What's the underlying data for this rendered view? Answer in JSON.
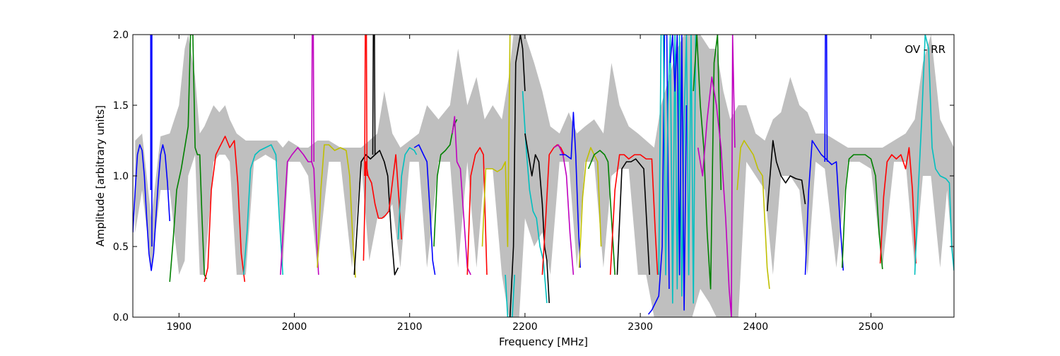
{
  "chart_data": {
    "type": "line",
    "title": "",
    "xlabel": "Frequency [MHz]",
    "ylabel": "Amplitude [arbitrary units]",
    "annotation": "OV - RR",
    "xlim": [
      1860,
      2572
    ],
    "ylim": [
      0.0,
      2.0
    ],
    "grid": false,
    "legend": "none",
    "x_ticks": [
      1900,
      2000,
      2100,
      2200,
      2300,
      2400,
      2500
    ],
    "y_ticks": [
      0.0,
      0.5,
      1.0,
      1.5,
      2.0
    ],
    "x_tick_labels": [
      "1900",
      "2000",
      "2100",
      "2200",
      "2300",
      "2400",
      "2500"
    ],
    "y_tick_labels": [
      "0.0",
      "0.5",
      "1.0",
      "1.5",
      "2.0"
    ],
    "envelope": {
      "color": "#bfbfbf",
      "x": [
        1862,
        1868,
        1876,
        1884,
        1892,
        1900,
        1905,
        1908,
        1914,
        1918,
        1922,
        1930,
        1935,
        1940,
        1944,
        1950,
        1958,
        1965,
        1975,
        1985,
        1990,
        1995,
        2005,
        2012,
        2020,
        2030,
        2040,
        2050,
        2058,
        2065,
        2072,
        2078,
        2085,
        2092,
        2100,
        2108,
        2115,
        2125,
        2135,
        2142,
        2150,
        2158,
        2165,
        2172,
        2180,
        2186,
        2190,
        2195,
        2200,
        2208,
        2215,
        2222,
        2230,
        2238,
        2245,
        2252,
        2260,
        2268,
        2275,
        2282,
        2290,
        2298,
        2305,
        2312,
        2318,
        2325,
        2332,
        2338,
        2345,
        2352,
        2360,
        2366,
        2372,
        2378,
        2385,
        2392,
        2400,
        2408,
        2415,
        2422,
        2430,
        2438,
        2445,
        2452,
        2460,
        2470,
        2480,
        2490,
        2500,
        2510,
        2520,
        2530,
        2538,
        2545,
        2552,
        2560,
        2566,
        2572
      ],
      "upper": [
        1.25,
        1.3,
        0.7,
        1.28,
        1.3,
        1.5,
        1.9,
        2.0,
        1.7,
        1.3,
        1.35,
        1.5,
        1.45,
        1.5,
        1.4,
        1.3,
        1.25,
        1.25,
        1.25,
        1.25,
        1.2,
        1.25,
        1.2,
        1.2,
        1.25,
        1.25,
        1.2,
        1.2,
        1.2,
        1.25,
        1.3,
        1.6,
        1.3,
        1.2,
        1.25,
        1.3,
        1.5,
        1.4,
        1.5,
        1.9,
        1.5,
        1.7,
        1.4,
        1.5,
        1.4,
        1.7,
        2.0,
        2.0,
        2.0,
        1.8,
        1.6,
        1.35,
        1.3,
        1.45,
        1.3,
        1.35,
        1.4,
        1.3,
        1.8,
        1.5,
        1.35,
        1.3,
        1.25,
        1.2,
        1.5,
        1.7,
        1.9,
        2.0,
        2.0,
        2.0,
        1.9,
        1.9,
        1.6,
        1.4,
        1.5,
        1.5,
        1.3,
        1.25,
        1.4,
        1.45,
        1.7,
        1.5,
        1.45,
        1.3,
        1.3,
        1.25,
        1.2,
        1.2,
        1.2,
        1.2,
        1.25,
        1.3,
        1.4,
        1.8,
        2.0,
        1.4,
        1.3,
        1.2
      ],
      "lower": [
        0.6,
        0.9,
        0.35,
        0.9,
        0.9,
        0.3,
        0.4,
        1.0,
        1.15,
        0.3,
        0.3,
        1.1,
        1.15,
        1.15,
        1.1,
        0.3,
        0.3,
        1.1,
        1.15,
        1.1,
        0.35,
        1.1,
        1.1,
        1.0,
        0.35,
        1.1,
        1.1,
        0.35,
        1.1,
        0.4,
        0.7,
        0.7,
        0.8,
        0.35,
        1.1,
        1.1,
        0.35,
        1.1,
        1.1,
        0.35,
        1.1,
        0.35,
        1.05,
        1.05,
        0.3,
        0.0,
        0.0,
        0.0,
        0.7,
        0.5,
        0.6,
        0.3,
        1.1,
        1.1,
        0.35,
        1.1,
        1.1,
        0.35,
        1.0,
        1.05,
        1.05,
        0.3,
        0.3,
        0.0,
        0.0,
        0.0,
        0.0,
        0.0,
        0.0,
        0.2,
        0.1,
        0.0,
        0.0,
        0.0,
        0.0,
        1.1,
        1.0,
        0.9,
        0.3,
        1.0,
        1.0,
        0.9,
        0.3,
        1.1,
        1.05,
        0.35,
        1.1,
        1.1,
        1.05,
        0.35,
        1.1,
        1.1,
        0.35,
        1.0,
        1.0,
        0.35,
        0.9,
        0.35
      ]
    },
    "series": [
      {
        "color": "#0000ff",
        "x": [
          1860,
          1862,
          1864,
          1866,
          1868,
          1870,
          1872,
          1874,
          1876,
          1878,
          1880,
          1882,
          1884,
          1886,
          1888,
          1890,
          1892
        ],
        "y": [
          0.6,
          0.9,
          1.15,
          1.22,
          1.18,
          1.0,
          0.7,
          0.45,
          0.33,
          0.45,
          0.7,
          0.95,
          1.15,
          1.22,
          1.15,
          0.95,
          0.68
        ]
      },
      {
        "color": "#0000ff",
        "x": [
          1875.5,
          1875.5,
          1876.5,
          1876.5
        ],
        "y": [
          0.9,
          2.0,
          2.0,
          0.5
        ]
      },
      {
        "color": "#008000",
        "x": [
          1892,
          1895,
          1898,
          1902,
          1906,
          1908,
          1910,
          1912,
          1914,
          1916,
          1918,
          1920,
          1922,
          1924
        ],
        "y": [
          0.25,
          0.55,
          0.9,
          1.05,
          1.25,
          1.35,
          2.0,
          2.0,
          1.2,
          1.15,
          1.15,
          0.7,
          0.3,
          0.27
        ]
      },
      {
        "color": "#ff0000",
        "x": [
          1922,
          1925,
          1928,
          1932,
          1935,
          1940,
          1944,
          1948,
          1951,
          1954,
          1957
        ],
        "y": [
          0.25,
          0.35,
          0.9,
          1.15,
          1.2,
          1.28,
          1.2,
          1.25,
          0.95,
          0.45,
          0.25
        ]
      },
      {
        "color": "#00bfbf",
        "x": [
          1956,
          1959,
          1962,
          1966,
          1970,
          1975,
          1980,
          1984,
          1987,
          1990
        ],
        "y": [
          0.3,
          0.6,
          1.05,
          1.15,
          1.18,
          1.2,
          1.22,
          1.15,
          0.7,
          0.3
        ]
      },
      {
        "color": "#bf00bf",
        "x": [
          1988,
          1991,
          1994,
          1998,
          2003,
          2008,
          2012,
          2015,
          2017,
          2019,
          2021
        ],
        "y": [
          0.3,
          0.7,
          1.1,
          1.15,
          1.2,
          1.15,
          1.1,
          1.1,
          1.05,
          0.6,
          0.3
        ]
      },
      {
        "color": "#bf00bf",
        "x": [
          2015,
          2015.5,
          2016.5,
          2017
        ],
        "y": [
          1.1,
          2.0,
          2.0,
          1.1
        ]
      },
      {
        "color": "#bfbf00",
        "x": [
          2020,
          2023,
          2026,
          2030,
          2035,
          2040,
          2045,
          2048,
          2051,
          2053
        ],
        "y": [
          0.35,
          0.9,
          1.22,
          1.22,
          1.18,
          1.2,
          1.18,
          1.0,
          0.5,
          0.28
        ]
      },
      {
        "color": "#000000",
        "x": [
          2052,
          2055,
          2058,
          2062,
          2066,
          2070,
          2074,
          2078,
          2081,
          2084,
          2087,
          2090
        ],
        "y": [
          0.3,
          0.7,
          1.1,
          1.15,
          1.12,
          1.15,
          1.18,
          1.1,
          1.0,
          0.6,
          0.3,
          0.35
        ]
      },
      {
        "color": "#000000",
        "x": [
          2068,
          2068.5,
          2069.5,
          2070
        ],
        "y": [
          1.15,
          2.0,
          2.0,
          1.15
        ]
      },
      {
        "color": "#ff0000",
        "x": [
          2060,
          2062,
          2064,
          2067,
          2070,
          2073,
          2076,
          2079,
          2082,
          2085,
          2088,
          2091,
          2093
        ],
        "y": [
          0.4,
          1.1,
          1.0,
          0.95,
          0.8,
          0.7,
          0.7,
          0.72,
          0.75,
          0.95,
          1.15,
          0.8,
          0.55
        ]
      },
      {
        "color": "#ff0000",
        "x": [
          2061,
          2061.5,
          2062.5,
          2063
        ],
        "y": [
          1.0,
          2.0,
          2.0,
          1.0
        ]
      },
      {
        "color": "#00bfbf",
        "x": [
          2090,
          2093,
          2096,
          2100,
          2104,
          2106
        ],
        "y": [
          0.55,
          1.0,
          1.15,
          1.2,
          1.18,
          1.15
        ]
      },
      {
        "color": "#0000ff",
        "x": [
          2104,
          2108,
          2112,
          2115,
          2118,
          2120,
          2122
        ],
        "y": [
          1.2,
          1.22,
          1.15,
          1.1,
          0.7,
          0.4,
          0.3
        ]
      },
      {
        "color": "#008000",
        "x": [
          2121,
          2124,
          2127,
          2131,
          2135,
          2138,
          2141
        ],
        "y": [
          0.5,
          1.0,
          1.15,
          1.18,
          1.22,
          1.35,
          1.4
        ]
      },
      {
        "color": "#bf00bf",
        "x": [
          2137,
          2139,
          2141,
          2144,
          2147,
          2150,
          2153
        ],
        "y": [
          1.3,
          1.42,
          1.1,
          1.05,
          0.7,
          0.35,
          0.3
        ]
      },
      {
        "color": "#ff0000",
        "x": [
          2150,
          2153,
          2157,
          2161,
          2164,
          2167
        ],
        "y": [
          0.3,
          1.0,
          1.15,
          1.2,
          1.15,
          0.3
        ]
      },
      {
        "color": "#bfbf00",
        "x": [
          2163,
          2166,
          2168,
          2172,
          2176,
          2180,
          2183,
          2185,
          2187
        ],
        "y": [
          0.5,
          1.05,
          1.05,
          1.05,
          1.03,
          1.05,
          1.1,
          0.5,
          2.0
        ]
      },
      {
        "color": "#00bfbf",
        "x": [
          2183,
          2185,
          2187,
          2189,
          2191
        ],
        "y": [
          0.3,
          0.0,
          0.0,
          0.0,
          0.3
        ]
      },
      {
        "color": "#000000",
        "x": [
          2187,
          2190,
          2192,
          2194,
          2196,
          2198,
          2200
        ],
        "y": [
          0.0,
          0.5,
          1.8,
          1.9,
          2.0,
          1.9,
          1.6
        ]
      },
      {
        "color": "#00bfbf",
        "x": [
          2198,
          2201,
          2204,
          2207,
          2210,
          2213,
          2216,
          2219
        ],
        "y": [
          1.6,
          1.2,
          0.9,
          0.75,
          0.7,
          0.5,
          0.4,
          0.1
        ]
      },
      {
        "color": "#000000",
        "x": [
          2200,
          2203,
          2206,
          2209,
          2212,
          2215,
          2217,
          2219,
          2221
        ],
        "y": [
          1.3,
          1.15,
          1.0,
          1.15,
          1.1,
          0.8,
          0.5,
          0.4,
          0.1
        ]
      },
      {
        "color": "#ff0000",
        "x": [
          2215,
          2218,
          2221,
          2225,
          2228,
          2231,
          2234
        ],
        "y": [
          0.3,
          0.7,
          1.15,
          1.2,
          1.22,
          1.2,
          1.15
        ]
      },
      {
        "color": "#bf00bf",
        "x": [
          2225,
          2229,
          2233,
          2236,
          2239,
          2242
        ],
        "y": [
          1.2,
          1.22,
          1.15,
          1.0,
          0.6,
          0.3
        ]
      },
      {
        "color": "#0000ff",
        "x": [
          2230,
          2235,
          2240,
          2242,
          2244,
          2246,
          2248
        ],
        "y": [
          1.15,
          1.15,
          1.12,
          1.45,
          1.15,
          0.7,
          0.35
        ]
      },
      {
        "color": "#bfbf00",
        "x": [
          2247,
          2250,
          2253,
          2257,
          2260,
          2263,
          2266
        ],
        "y": [
          0.35,
          0.85,
          1.1,
          1.2,
          1.15,
          1.1,
          0.5
        ]
      },
      {
        "color": "#008000",
        "x": [
          2255,
          2260,
          2265,
          2269,
          2272,
          2275,
          2278
        ],
        "y": [
          1.05,
          1.15,
          1.18,
          1.15,
          1.1,
          0.7,
          0.3
        ]
      },
      {
        "color": "#000000",
        "x": [
          2280,
          2284,
          2288,
          2292,
          2296,
          2300,
          2303,
          2306,
          2308
        ],
        "y": [
          0.3,
          1.05,
          1.1,
          1.1,
          1.12,
          1.08,
          1.05,
          0.6,
          0.3
        ]
      },
      {
        "color": "#ff0000",
        "x": [
          2274,
          2278,
          2282,
          2286,
          2290,
          2295,
          2300,
          2305,
          2310,
          2313,
          2315
        ],
        "y": [
          0.3,
          0.9,
          1.15,
          1.15,
          1.12,
          1.15,
          1.15,
          1.12,
          1.12,
          0.6,
          0.3
        ]
      },
      {
        "color": "#0000ff",
        "x": [
          2307,
          2310,
          2313,
          2316,
          2319,
          2321,
          2323,
          2325
        ],
        "y": [
          0.02,
          0.05,
          0.1,
          0.15,
          0.5,
          2.0,
          2.0,
          0.2
        ]
      },
      {
        "color": "#00bfbf",
        "x": [
          2316,
          2318,
          2320,
          2322,
          2324,
          2326,
          2328,
          2330,
          2332,
          2334,
          2336,
          2338,
          2340,
          2342,
          2344,
          2346,
          2348
        ],
        "y": [
          0.3,
          2.0,
          2.0,
          0.3,
          1.5,
          2.0,
          0.1,
          2.0,
          0.2,
          2.0,
          0.15,
          1.4,
          2.0,
          0.3,
          2.0,
          0.1,
          2.0
        ]
      },
      {
        "color": "#0000ff",
        "x": [
          2326,
          2328,
          2330,
          2332,
          2334,
          2336,
          2338,
          2340
        ],
        "y": [
          1.8,
          2.0,
          1.6,
          2.0,
          0.3,
          2.0,
          0.05,
          1.5
        ]
      },
      {
        "color": "#008000",
        "x": [
          2346,
          2349,
          2352,
          2355,
          2358,
          2361,
          2364,
          2367,
          2370
        ],
        "y": [
          1.6,
          2.0,
          1.5,
          1.2,
          0.6,
          0.2,
          1.8,
          2.0,
          0.9
        ]
      },
      {
        "color": "#bf00bf",
        "x": [
          2350,
          2354,
          2358,
          2362,
          2366,
          2370,
          2374,
          2377,
          2379,
          2380,
          2382
        ],
        "y": [
          1.2,
          1.0,
          1.4,
          1.7,
          1.5,
          1.2,
          0.7,
          0.2,
          0.0,
          2.0,
          1.2
        ]
      },
      {
        "color": "#bfbf00",
        "x": [
          2384,
          2387,
          2390,
          2394,
          2398,
          2402,
          2406,
          2410,
          2412
        ],
        "y": [
          0.9,
          1.2,
          1.25,
          1.2,
          1.15,
          1.05,
          1.0,
          0.35,
          0.2
        ]
      },
      {
        "color": "#000000",
        "x": [
          2410,
          2413,
          2415,
          2418,
          2422,
          2426,
          2430,
          2435,
          2440,
          2443
        ],
        "y": [
          0.75,
          1.05,
          1.25,
          1.1,
          1.0,
          0.95,
          1.0,
          0.98,
          0.97,
          0.8
        ]
      },
      {
        "color": "#0000ff",
        "x": [
          2443,
          2446,
          2449,
          2453,
          2457,
          2461,
          2466,
          2470,
          2473,
          2476
        ],
        "y": [
          0.3,
          0.9,
          1.25,
          1.2,
          1.15,
          1.12,
          1.08,
          1.1,
          0.7,
          0.33
        ]
      },
      {
        "color": "#0000ff",
        "x": [
          2460,
          2460.5,
          2461.5,
          2462
        ],
        "y": [
          1.1,
          2.0,
          2.0,
          1.1
        ]
      },
      {
        "color": "#008000",
        "x": [
          2475,
          2478,
          2481,
          2485,
          2490,
          2495,
          2500,
          2504,
          2507,
          2510
        ],
        "y": [
          0.35,
          0.9,
          1.12,
          1.15,
          1.15,
          1.15,
          1.12,
          1.0,
          0.6,
          0.34
        ]
      },
      {
        "color": "#ff0000",
        "x": [
          2508,
          2511,
          2514,
          2518,
          2522,
          2526,
          2530,
          2533,
          2536,
          2539
        ],
        "y": [
          0.38,
          0.85,
          1.1,
          1.15,
          1.12,
          1.15,
          1.05,
          1.2,
          0.9,
          0.38
        ]
      },
      {
        "color": "#00bfbf",
        "x": [
          2538,
          2541,
          2544,
          2547,
          2550,
          2553,
          2556,
          2560,
          2565,
          2568,
          2570,
          2572
        ],
        "y": [
          0.3,
          0.9,
          1.4,
          2.0,
          1.9,
          1.2,
          1.05,
          1.0,
          0.98,
          0.95,
          0.5,
          0.33
        ]
      }
    ]
  }
}
